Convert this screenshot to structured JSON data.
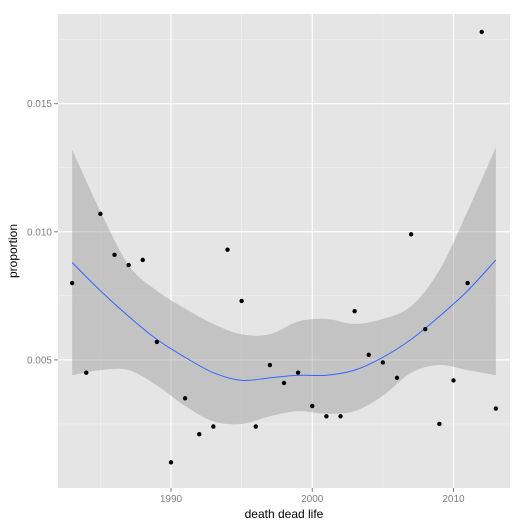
{
  "chart_data": {
    "type": "scatter",
    "xlabel": "death dead life",
    "ylabel": "proportion",
    "xlim": [
      1982,
      2014
    ],
    "ylim": [
      0.0,
      0.0185
    ],
    "x_ticks": [
      1990,
      2000,
      2010
    ],
    "y_ticks": [
      0.005,
      0.01,
      0.015
    ],
    "x_tick_labels": [
      "1990",
      "2000",
      "2010"
    ],
    "y_tick_labels": [
      "0.005",
      "0.010",
      "0.015"
    ],
    "grid": true,
    "points": [
      {
        "x": 1983,
        "y": 0.008
      },
      {
        "x": 1984,
        "y": 0.0045
      },
      {
        "x": 1985,
        "y": 0.0107
      },
      {
        "x": 1986,
        "y": 0.0091
      },
      {
        "x": 1987,
        "y": 0.0087
      },
      {
        "x": 1988,
        "y": 0.0089
      },
      {
        "x": 1989,
        "y": 0.0057
      },
      {
        "x": 1990,
        "y": 0.001
      },
      {
        "x": 1991,
        "y": 0.0035
      },
      {
        "x": 1992,
        "y": 0.0021
      },
      {
        "x": 1993,
        "y": 0.0024
      },
      {
        "x": 1994,
        "y": 0.0093
      },
      {
        "x": 1995,
        "y": 0.0073
      },
      {
        "x": 1996,
        "y": 0.0024
      },
      {
        "x": 1997,
        "y": 0.0048
      },
      {
        "x": 1998,
        "y": 0.0041
      },
      {
        "x": 1999,
        "y": 0.0045
      },
      {
        "x": 2000,
        "y": 0.0032
      },
      {
        "x": 2001,
        "y": 0.0028
      },
      {
        "x": 2002,
        "y": 0.0028
      },
      {
        "x": 2003,
        "y": 0.0069
      },
      {
        "x": 2004,
        "y": 0.0052
      },
      {
        "x": 2005,
        "y": 0.0049
      },
      {
        "x": 2006,
        "y": 0.0043
      },
      {
        "x": 2007,
        "y": 0.0099
      },
      {
        "x": 2008,
        "y": 0.0062
      },
      {
        "x": 2009,
        "y": 0.0025
      },
      {
        "x": 2010,
        "y": 0.0042
      },
      {
        "x": 2011,
        "y": 0.008
      },
      {
        "x": 2012,
        "y": 0.0178
      },
      {
        "x": 2013,
        "y": 0.0031
      }
    ],
    "smooth": {
      "method": "loess",
      "color": "#3366ff",
      "x": [
        1983,
        1985,
        1987,
        1989,
        1991,
        1993,
        1995,
        1997,
        1999,
        2001,
        2003,
        2005,
        2007,
        2009,
        2011,
        2013
      ],
      "y": [
        0.0088,
        0.0077,
        0.0067,
        0.0058,
        0.0051,
        0.0045,
        0.0042,
        0.0043,
        0.0044,
        0.0044,
        0.0046,
        0.0051,
        0.0058,
        0.0067,
        0.0077,
        0.0089
      ],
      "lower": [
        0.0044,
        0.0046,
        0.0046,
        0.004,
        0.0032,
        0.0026,
        0.0025,
        0.0028,
        0.003,
        0.0029,
        0.003,
        0.0036,
        0.0045,
        0.0048,
        0.0046,
        0.0044
      ],
      "upper": [
        0.0132,
        0.0108,
        0.0087,
        0.0077,
        0.007,
        0.0064,
        0.006,
        0.006,
        0.0065,
        0.0066,
        0.0064,
        0.0066,
        0.0071,
        0.0085,
        0.0108,
        0.0133
      ]
    },
    "colors": {
      "panel_background": "#e5e5e5",
      "grid_major": "#ffffff",
      "grid_minor": "#f2f2f2",
      "point": "#000000",
      "ribbon": "#999999"
    }
  }
}
